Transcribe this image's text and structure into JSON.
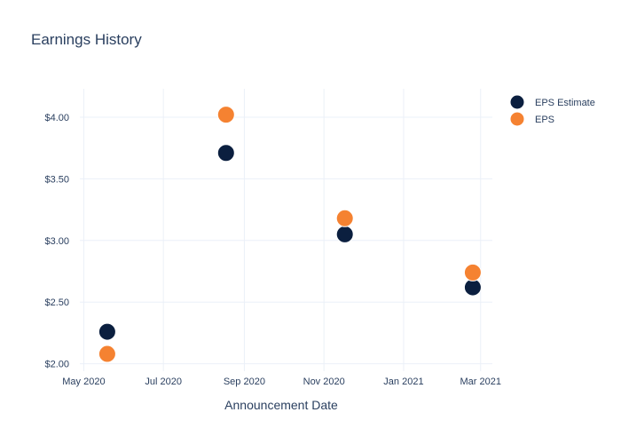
{
  "chart_data": {
    "type": "scatter",
    "title": "Earnings History",
    "xlabel": "Announcement Date",
    "ylabel": "",
    "x_ticks": [
      {
        "label": "May 2020",
        "date": "2020-05-01"
      },
      {
        "label": "Jul 2020",
        "date": "2020-07-01"
      },
      {
        "label": "Sep 2020",
        "date": "2020-09-01"
      },
      {
        "label": "Nov 2020",
        "date": "2020-11-01"
      },
      {
        "label": "Jan 2021",
        "date": "2021-01-01"
      },
      {
        "label": "Mar 2021",
        "date": "2021-03-01"
      }
    ],
    "y_ticks": [
      {
        "label": "$2.00",
        "value": 2.0
      },
      {
        "label": "$2.50",
        "value": 2.5
      },
      {
        "label": "$3.00",
        "value": 3.0
      },
      {
        "label": "$3.50",
        "value": 3.5
      },
      {
        "label": "$4.00",
        "value": 4.0
      }
    ],
    "xlim": [
      "2020-04-28",
      "2021-03-10"
    ],
    "ylim": [
      1.94,
      4.23
    ],
    "grid": true,
    "legend_position": "top-right",
    "series": [
      {
        "name": "EPS Estimate",
        "color": "#0b1f3f",
        "points": [
          {
            "x": "2020-05-19",
            "y": 2.26
          },
          {
            "x": "2020-08-18",
            "y": 3.71
          },
          {
            "x": "2020-11-17",
            "y": 3.05
          },
          {
            "x": "2021-02-23",
            "y": 2.62
          }
        ]
      },
      {
        "name": "EPS",
        "color": "#f58231",
        "points": [
          {
            "x": "2020-05-19",
            "y": 2.08
          },
          {
            "x": "2020-08-18",
            "y": 4.02
          },
          {
            "x": "2020-11-17",
            "y": 3.18
          },
          {
            "x": "2021-02-23",
            "y": 2.74
          }
        ]
      }
    ]
  }
}
